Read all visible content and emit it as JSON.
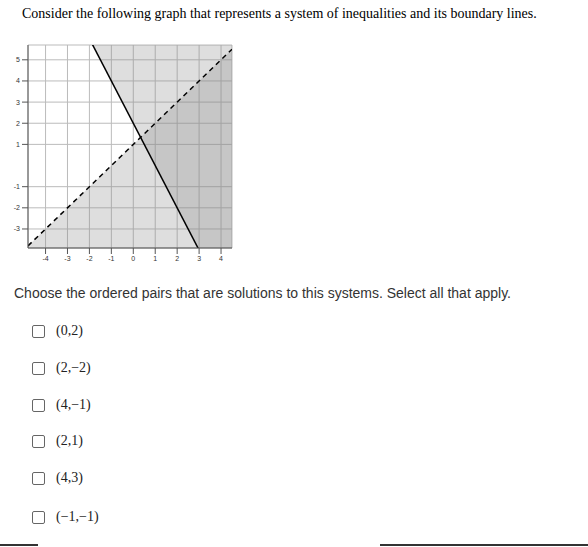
{
  "header": {
    "title": "Consider the following graph that represents a system of inequalities and its boundary lines."
  },
  "chart_data": {
    "type": "line",
    "xlim": [
      -4.8,
      4.5
    ],
    "ylim": [
      -3.9,
      5.7
    ],
    "xticks": [
      -4,
      -3,
      -2,
      -1,
      0,
      1,
      2,
      3,
      4
    ],
    "yticks": [
      -3,
      -2,
      -1,
      1,
      2,
      3,
      4,
      5
    ],
    "grid": true,
    "series": [
      {
        "slope": -2,
        "intercept": 2,
        "line_style": "solid",
        "color": "#000000"
      },
      {
        "slope": 1,
        "intercept": 1,
        "line_style": "dashed",
        "color": "#000000"
      }
    ]
  },
  "prompt": "Choose the ordered pairs that are solutions to this systems. Select all that apply.",
  "options": [
    "(0,2)",
    "(2,−2)",
    "(4,−1)",
    "(2,1)",
    "(4,3)",
    "(−1,−1)"
  ]
}
